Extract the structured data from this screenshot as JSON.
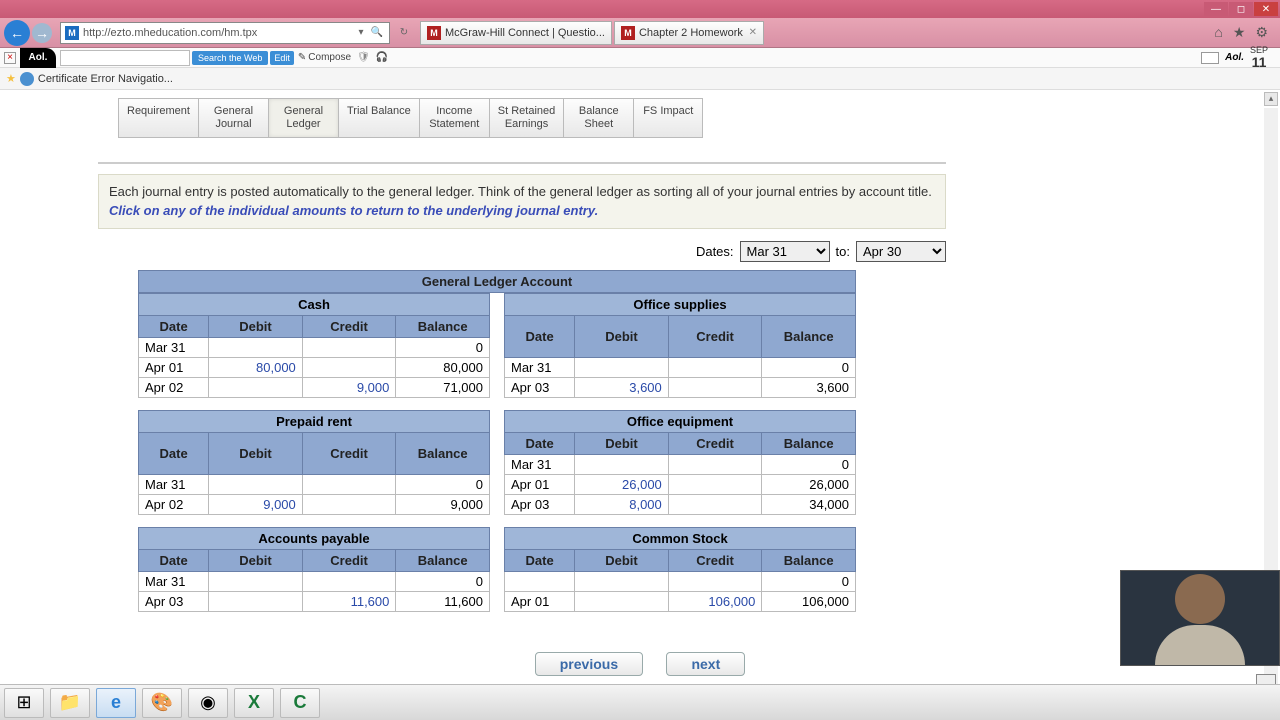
{
  "window": {
    "titlebar_color": "#c85a75"
  },
  "browser": {
    "url": "http://ezto.mheducation.com/hm.tpx",
    "favicon_letter": "M",
    "tabs": [
      {
        "icon": "M",
        "title": "McGraw-Hill Connect | Questio..."
      },
      {
        "icon": "M",
        "title": "Chapter 2 Homework"
      }
    ],
    "toolbar2": {
      "aol": "Aol.",
      "search_btn": "Search the Web",
      "edit_btn": "Edit",
      "compose": "Compose",
      "date_month": "SEP",
      "date_day": "11",
      "aolsmall": "Aol."
    },
    "bookmark": "Certificate Error Navigatio..."
  },
  "navtabs": [
    "Requirement",
    "General\nJournal",
    "General\nLedger",
    "Trial Balance",
    "Income\nStatement",
    "St Retained\nEarnings",
    "Balance\nSheet",
    "FS Impact"
  ],
  "navtab_active": 2,
  "instruction": {
    "text1": "Each journal entry is posted automatically to the general ledger.   Think of the general ledger as sorting all of your journal entries by account title.  ",
    "link": "Click on any of the individual amounts to return to the underlying journal entry."
  },
  "dates": {
    "label": "Dates:",
    "from": "Mar 31",
    "to_label": "to:",
    "to": "Apr 30"
  },
  "gla_header": "General Ledger Account",
  "col_headers": [
    "Date",
    "Debit",
    "Credit",
    "Balance"
  ],
  "ledgers": {
    "cash": {
      "title": "Cash",
      "rows": [
        [
          "Mar 31",
          "",
          "",
          "0"
        ],
        [
          "Apr 01",
          "80,000",
          "",
          "80,000"
        ],
        [
          "Apr 02",
          "",
          "9,000",
          "71,000"
        ]
      ]
    },
    "office_supplies": {
      "title": "Office supplies",
      "rows": [
        [
          "Mar 31",
          "",
          "",
          "0"
        ],
        [
          "Apr 03",
          "3,600",
          "",
          "3,600"
        ]
      ]
    },
    "prepaid_rent": {
      "title": "Prepaid rent",
      "rows": [
        [
          "Mar 31",
          "",
          "",
          "0"
        ],
        [
          "Apr 02",
          "9,000",
          "",
          "9,000"
        ]
      ]
    },
    "office_equipment": {
      "title": "Office equipment",
      "rows": [
        [
          "Mar 31",
          "",
          "",
          "0"
        ],
        [
          "Apr 01",
          "26,000",
          "",
          "26,000"
        ],
        [
          "Apr 03",
          "8,000",
          "",
          "34,000"
        ]
      ]
    },
    "accounts_payable": {
      "title": "Accounts payable",
      "rows": [
        [
          "Mar 31",
          "",
          "",
          "0"
        ],
        [
          "Apr 03",
          "",
          "11,600",
          "11,600"
        ]
      ]
    },
    "common_stock": {
      "title": "Common Stock",
      "rows": [
        [
          "",
          "",
          "",
          "0"
        ],
        [
          "Apr 01",
          "",
          "106,000",
          "106,000"
        ]
      ]
    }
  },
  "nav": {
    "prev": "previous",
    "next": "next"
  },
  "colors": {
    "header_bg": "#8fa8d0",
    "header_border": "#6a80a8",
    "acct_bg": "#9fb6d8",
    "instruct_bg": "#f4f4ec"
  }
}
